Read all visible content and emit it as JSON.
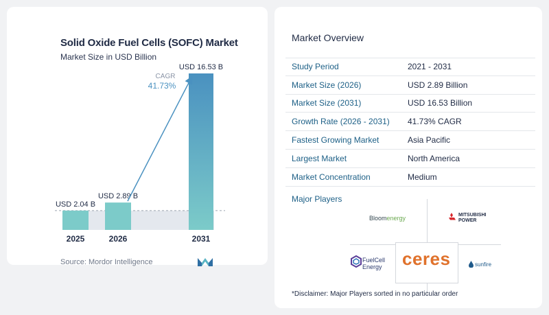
{
  "chart_data": {
    "type": "bar",
    "title": "Solid Oxide Fuel Cells (SOFC) Market",
    "subtitle": "Market Size in USD Billion",
    "categories": [
      "2025",
      "2026",
      "2031"
    ],
    "values": [
      2.04,
      2.89,
      16.53
    ],
    "data_labels": [
      "USD 2.04 B",
      "USD 2.89 B",
      "USD 16.53 B"
    ],
    "cagr_label": "CAGR",
    "cagr_value": "41.73%",
    "ylim": [
      0,
      16.53
    ],
    "colors": {
      "bar_light": "#7ccbc9",
      "bar_dark": "#4a91c0",
      "arrow": "#4a91c0",
      "cagr_text": "#4a91c0"
    }
  },
  "source": "Source:  Mordor Intelligence",
  "overview": {
    "title": "Market Overview",
    "rows": [
      {
        "label": "Study Period",
        "value": "2021 - 2031"
      },
      {
        "label": "Market Size (2026)",
        "value": "USD 2.89 Billion"
      },
      {
        "label": "Market Size (2031)",
        "value": "USD 16.53 Billion"
      },
      {
        "label": "Growth Rate (2026 - 2031)",
        "value": "41.73% CAGR"
      },
      {
        "label": "Fastest Growing Market",
        "value": "Asia Pacific"
      },
      {
        "label": "Largest Market",
        "value": "North America"
      },
      {
        "label": "Market Concentration",
        "value": "Medium"
      }
    ]
  },
  "players": {
    "title": "Major Players",
    "logos": {
      "bloom": {
        "main": "Bloom",
        "accent": "energy"
      },
      "mitsubishi": {
        "line1": "MITSUBISHI",
        "line2": "POWER"
      },
      "ceres": "ceres",
      "fuelcell": {
        "line1": "FuelCell",
        "line2": "Energy"
      },
      "sunfire": "sunfire"
    }
  },
  "disclaimer": "*Disclaimer: Major Players sorted in no particular order"
}
